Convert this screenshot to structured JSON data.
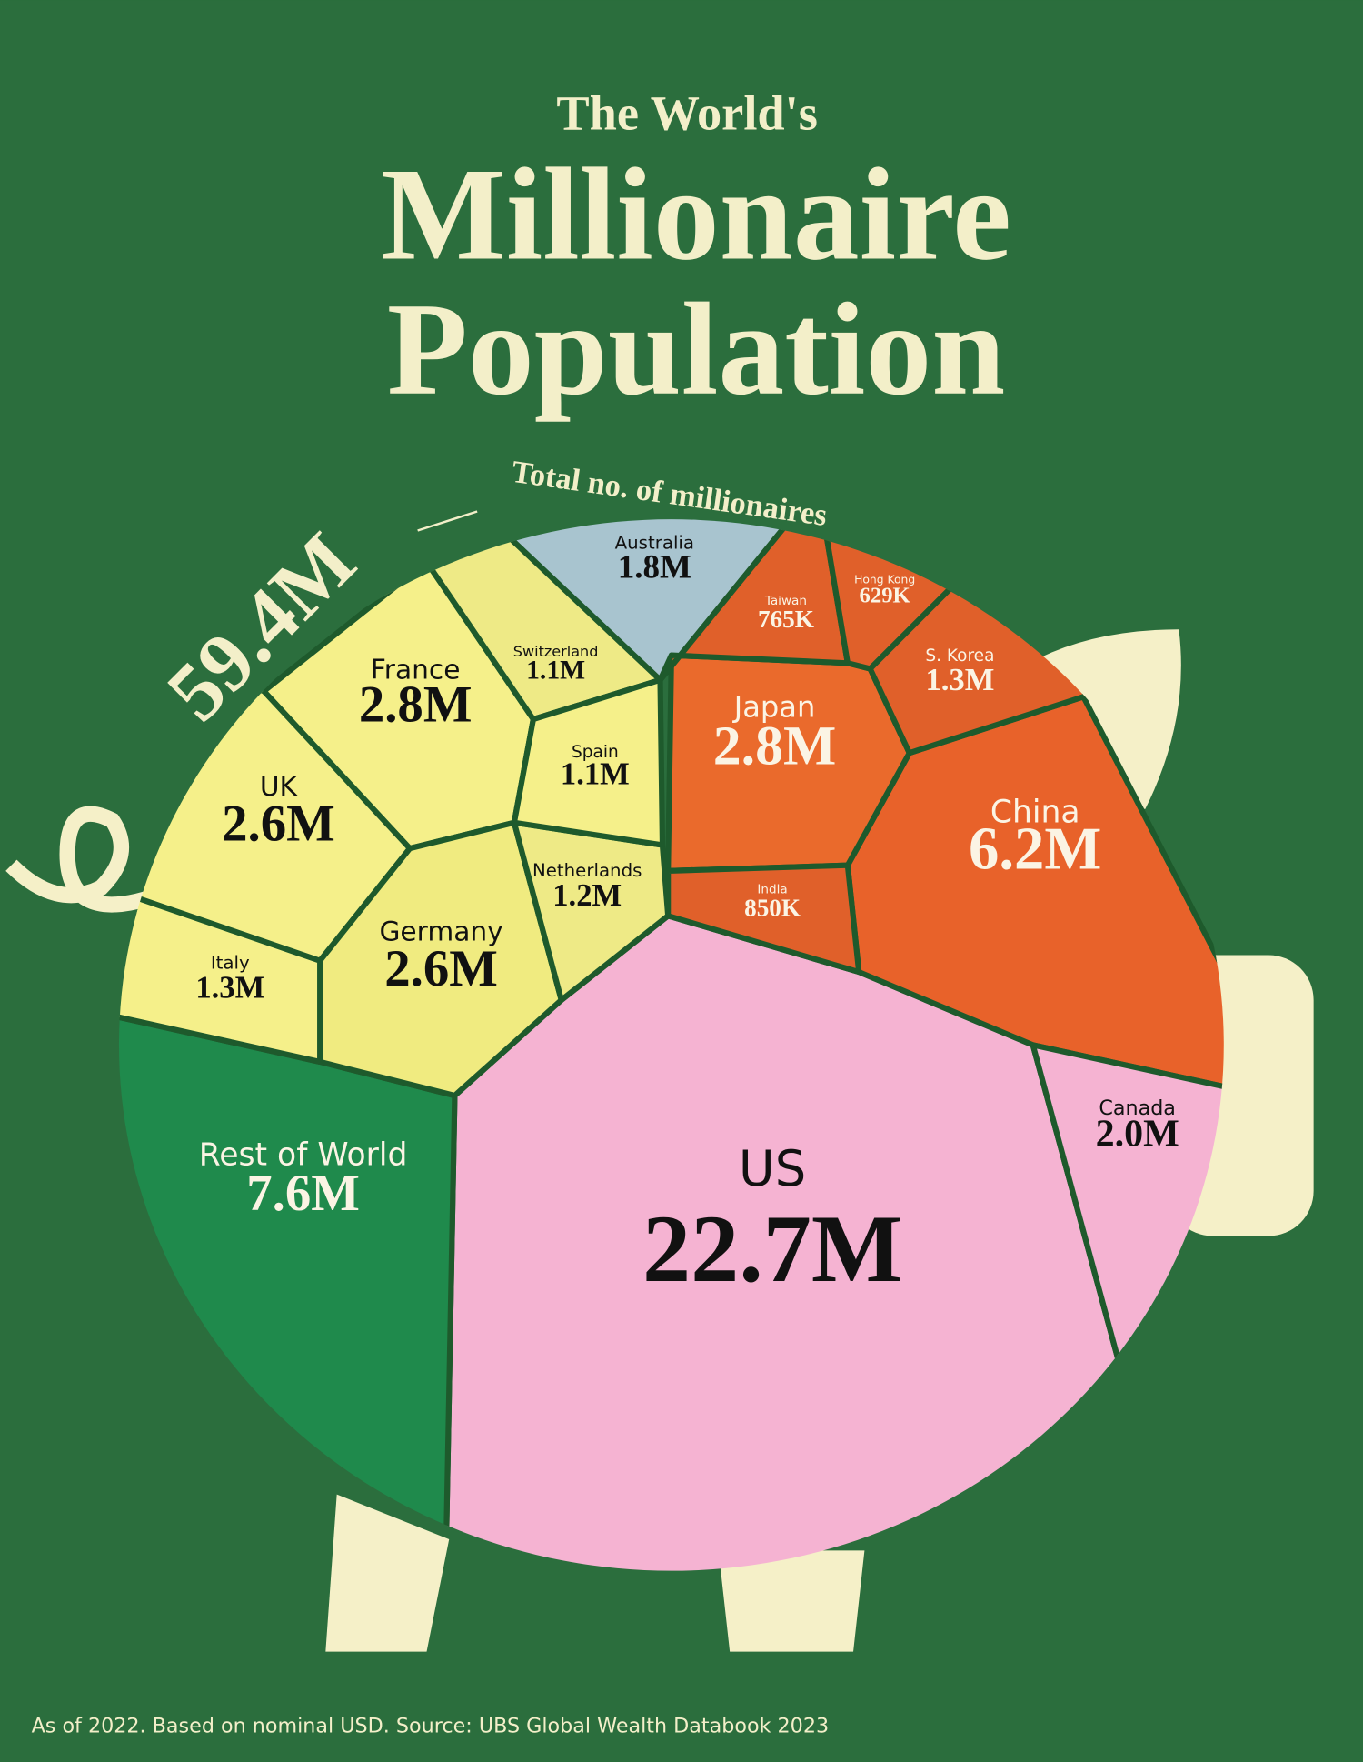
{
  "chart_data": {
    "type": "voronoi-treemap",
    "title_top": "The World's",
    "title_lines": [
      "Millionaire",
      "Population"
    ],
    "total": 59.4,
    "total_label": "59.4M",
    "total_annotation": "Total no. of millionaires",
    "categories": [
      "US",
      "Rest of World",
      "China",
      "Japan",
      "France",
      "UK",
      "Germany",
      "Canada",
      "Australia",
      "Italy",
      "S. Korea",
      "Netherlands",
      "Switzerland",
      "Spain",
      "India",
      "Taiwan",
      "Hong Kong"
    ],
    "values": [
      22.7,
      7.6,
      6.2,
      2.8,
      2.8,
      2.6,
      2.6,
      2.0,
      1.8,
      1.3,
      1.3,
      1.2,
      1.1,
      1.1,
      0.85,
      0.765,
      0.629
    ],
    "value_labels": [
      "22.7M",
      "7.6M",
      "6.2M",
      "2.8M",
      "2.8M",
      "2.6M",
      "2.6M",
      "2.0M",
      "1.8M",
      "1.3M",
      "1.3M",
      "1.2M",
      "1.1M",
      "1.1M",
      "850K",
      "765K",
      "629K"
    ],
    "colors": [
      "#f5b3d2",
      "#1f8a4c",
      "#e8622a",
      "#ea6a2c",
      "#f5f08a",
      "#f5f08a",
      "#f0eb80",
      "#f5b3d2",
      "#a8c4cf",
      "#f5f08a",
      "#e0602a",
      "#eeea86",
      "#eeea86",
      "#f5f08a",
      "#e0602a",
      "#e0602a",
      "#e0602a"
    ],
    "source": "As of 2022. Based on nominal USD. Source: UBS Global Wealth Databook 2023"
  }
}
